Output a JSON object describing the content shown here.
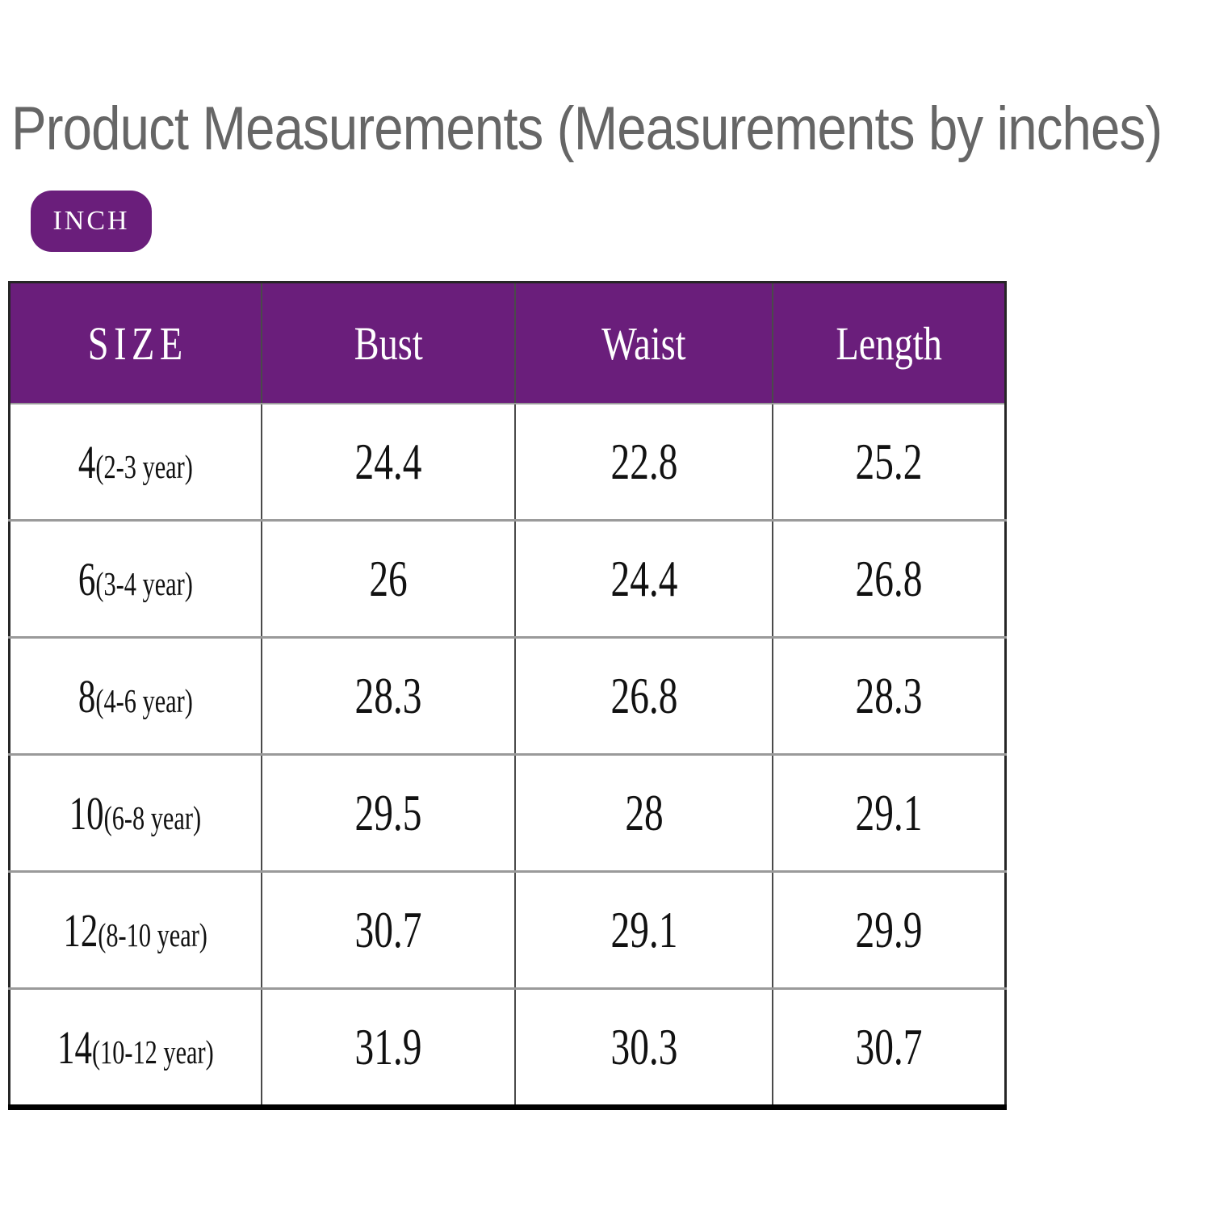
{
  "page": {
    "background": "#ffffff"
  },
  "title": {
    "text": "Product Measurements (Measurements by inches)",
    "color": "#666666"
  },
  "unit_badge": {
    "label": "INCH",
    "background": "#6A1E7B",
    "text_color": "#ffffff"
  },
  "table": {
    "header": {
      "background": "#6A1E7B",
      "text_color": "#ffffff",
      "columns": [
        "SIZE",
        "Bust",
        "Waist",
        "Length"
      ]
    },
    "rows": [
      {
        "size": "4",
        "age": "(2-3 year)",
        "bust": "24.4",
        "waist": "22.8",
        "length": "25.2"
      },
      {
        "size": "6",
        "age": "(3-4 year)",
        "bust": "26",
        "waist": "24.4",
        "length": "26.8"
      },
      {
        "size": "8",
        "age": "(4-6 year)",
        "bust": "28.3",
        "waist": "26.8",
        "length": "28.3"
      },
      {
        "size": "10",
        "age": "(6-8 year)",
        "bust": "29.5",
        "waist": "28",
        "length": "29.1"
      },
      {
        "size": "12",
        "age": "(8-10 year)",
        "bust": "30.7",
        "waist": "29.1",
        "length": "29.9"
      },
      {
        "size": "14",
        "age": "(10-12 year)",
        "bust": "31.9",
        "waist": "30.3",
        "length": "30.7"
      }
    ]
  },
  "chart_data": {
    "type": "table",
    "title": "Product Measurements (Measurements by inches)",
    "unit": "inches",
    "columns": [
      "SIZE",
      "Bust",
      "Waist",
      "Length"
    ],
    "rows": [
      [
        "4 (2-3 year)",
        24.4,
        22.8,
        25.2
      ],
      [
        "6 (3-4 year)",
        26,
        24.4,
        26.8
      ],
      [
        "8 (4-6 year)",
        28.3,
        26.8,
        28.3
      ],
      [
        "10 (6-8 year)",
        29.5,
        28,
        29.1
      ],
      [
        "12 (8-10 year)",
        30.7,
        29.1,
        29.9
      ],
      [
        "14 (10-12 year)",
        31.9,
        30.3,
        30.7
      ]
    ]
  }
}
